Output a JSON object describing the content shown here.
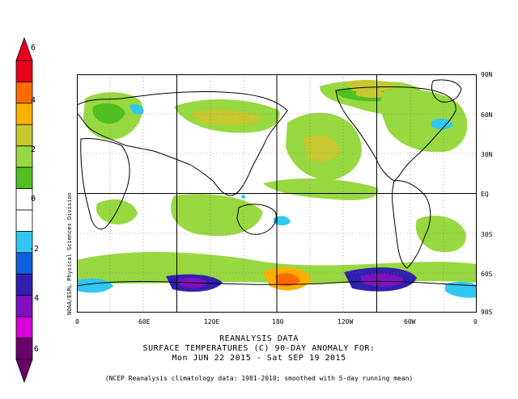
{
  "colorbar": {
    "labels": [
      "6",
      "4",
      "2",
      "0",
      "-2",
      "-4",
      "-6"
    ],
    "colors": [
      "#e8001c",
      "#ff6a00",
      "#ffb000",
      "#c8c830",
      "#98d840",
      "#50c020",
      "#ffffff",
      "#ffffff",
      "#30c8f0",
      "#1060e0",
      "#3020b0",
      "#8010c0",
      "#d800d8",
      "#6a006a"
    ]
  },
  "lat_labels": [
    "90N",
    "60N",
    "30N",
    "EQ",
    "30S",
    "60S",
    "90S"
  ],
  "lon_labels": [
    "0",
    "60E",
    "120E",
    "180",
    "120W",
    "60W",
    "0"
  ],
  "title": {
    "line1": "REANALYSIS DATA",
    "line2": "SURFACE TEMPERATURES (C)   90-DAY ANOMALY FOR:",
    "line3": "Mon JUN 22 2015 - Sat SEP 19 2015"
  },
  "note": "(NCEP Reanalysis climatology data: 1981-2010; smoothed with 5-day running mean)",
  "credit": "NOAA/ESRL Physical Sciences Division",
  "palette": {
    "warm1": "#98d840",
    "warm2": "#50c020",
    "warm3": "#c8c830",
    "warm4": "#ffb000",
    "warm5": "#ff6a00",
    "cold1": "#30c8f0",
    "cold2": "#1060e0",
    "cold3": "#3020b0",
    "cold4": "#8010c0",
    "cold5": "#d800d8",
    "cold6": "#6a006a"
  }
}
